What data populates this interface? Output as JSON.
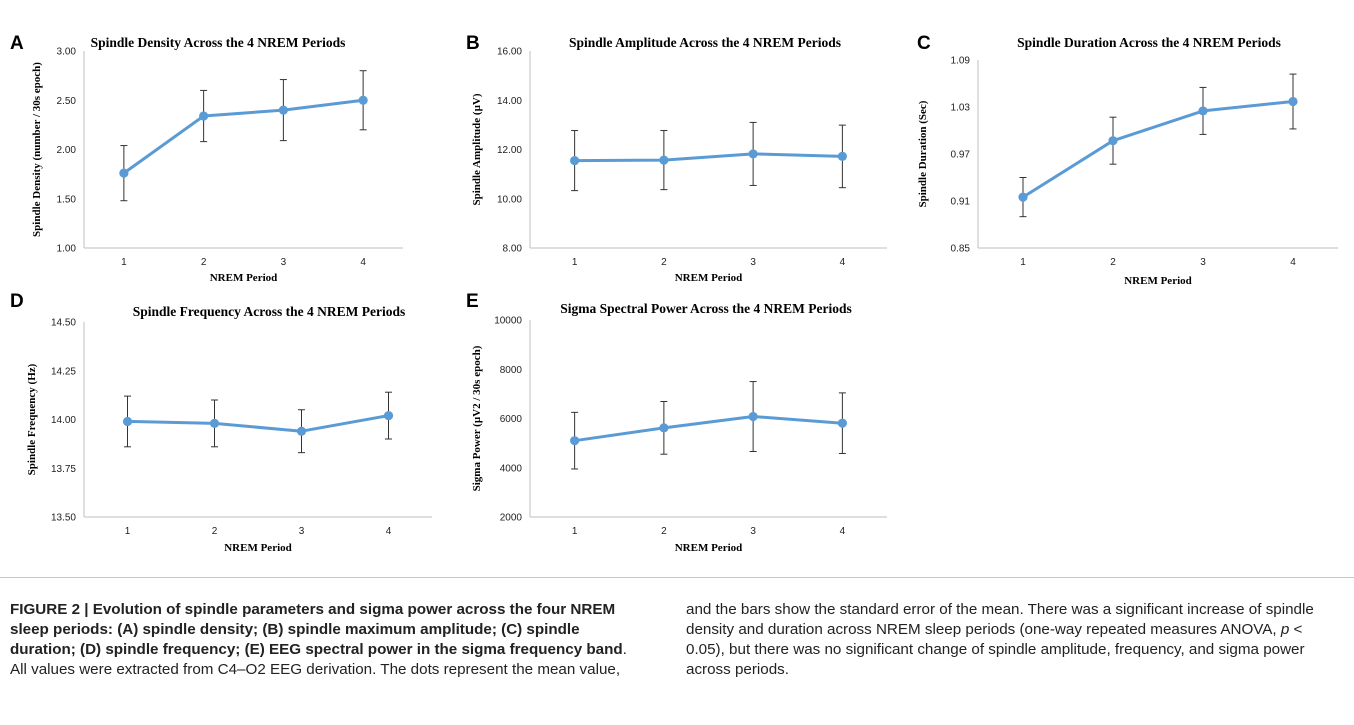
{
  "chart_data": [
    {
      "panel": "A",
      "type": "line",
      "title": "Spindle Density Across the 4 NREM Periods",
      "xlabel": "NREM Period",
      "ylabel": "Spindle Density (number / 30s epoch)",
      "categories": [
        "1",
        "2",
        "3",
        "4"
      ],
      "values": [
        1.76,
        2.34,
        2.4,
        2.5
      ],
      "error": [
        0.28,
        0.26,
        0.31,
        0.3
      ],
      "ylim": [
        1.0,
        3.0
      ],
      "yticks": [
        "1.00",
        "1.50",
        "2.00",
        "2.50",
        "3.00"
      ],
      "grid": false,
      "color": "#5b9bd5"
    },
    {
      "panel": "B",
      "type": "line",
      "title": "Spindle Amplitude Across the 4 NREM Periods",
      "xlabel": "NREM Period",
      "ylabel": "Spindle Amplitude (µV)",
      "categories": [
        "1",
        "2",
        "3",
        "4"
      ],
      "values": [
        11.55,
        11.57,
        11.82,
        11.72
      ],
      "error": [
        1.22,
        1.2,
        1.28,
        1.27
      ],
      "ylim": [
        8.0,
        16.0
      ],
      "yticks": [
        "8.00",
        "10.00",
        "12.00",
        "14.00",
        "16.00"
      ],
      "grid": false,
      "color": "#5b9bd5"
    },
    {
      "panel": "C",
      "type": "line",
      "title": "Spindle Duration Across the 4 NREM Periods",
      "xlabel": "NREM Period",
      "ylabel": "Spindle Duration (Sec)",
      "categories": [
        "1",
        "2",
        "3",
        "4"
      ],
      "values": [
        0.915,
        0.987,
        1.025,
        1.037
      ],
      "error": [
        0.025,
        0.03,
        0.03,
        0.035
      ],
      "ylim": [
        0.85,
        1.09
      ],
      "yticks": [
        "0.85",
        "0.91",
        "0.97",
        "1.03",
        "1.09"
      ],
      "grid": false,
      "color": "#5b9bd5"
    },
    {
      "panel": "D",
      "type": "line",
      "title": "Spindle Frequency Across the 4 NREM Periods",
      "xlabel": "NREM Period",
      "ylabel": "Spindle Frequency (Hz)",
      "categories": [
        "1",
        "2",
        "3",
        "4"
      ],
      "values": [
        13.99,
        13.98,
        13.94,
        14.02
      ],
      "error": [
        0.13,
        0.12,
        0.11,
        0.12
      ],
      "ylim": [
        13.5,
        14.5
      ],
      "yticks": [
        "13.50",
        "13.75",
        "14.00",
        "14.25",
        "14.50"
      ],
      "grid": false,
      "color": "#5b9bd5"
    },
    {
      "panel": "E",
      "type": "line",
      "title": "Sigma Spectral Power Across the 4 NREM Periods",
      "xlabel": "NREM Period",
      "ylabel": "Sigma Power (µV2 / 30s epoch)",
      "categories": [
        "1",
        "2",
        "3",
        "4"
      ],
      "values": [
        5100,
        5620,
        6080,
        5810
      ],
      "error": [
        1150,
        1070,
        1420,
        1230
      ],
      "ylim": [
        2000,
        10000
      ],
      "yticks": [
        "2000",
        "4000",
        "6000",
        "8000",
        "10000"
      ],
      "grid": false,
      "color": "#5b9bd5"
    }
  ],
  "caption": {
    "bold_text": "FIGURE 2 | Evolution of spindle parameters and sigma power across the four NREM sleep periods: (A) spindle density; (B) spindle maximum amplitude; (C) spindle duration; (D) spindle frequency; (E) EEG spectral power in the sigma frequency band",
    "left_rest": ". All values were extracted from C4–O2 EEG derivation. The dots represent the mean value,",
    "right_before_p": "and the bars show the standard error of the mean. There was a significant increase of spindle density and duration across NREM sleep periods (one-way repeated measures ANOVA, ",
    "p_symbol": "p",
    "right_after_p": " < 0.05), but there was no significant change of spindle amplitude, frequency, and sigma power across periods."
  }
}
